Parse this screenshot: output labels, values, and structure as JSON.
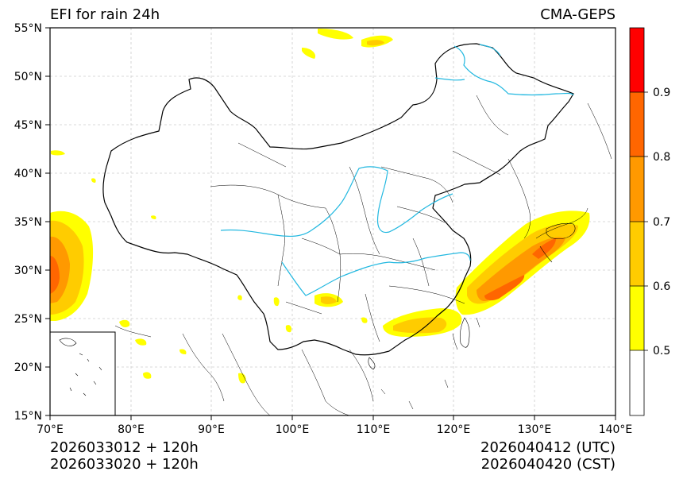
{
  "title_left": "EFI for rain 24h",
  "title_right": "CMA-GEPS",
  "map": {
    "lon_range": [
      70,
      140
    ],
    "lat_range": [
      15,
      55
    ],
    "lon_ticks": [
      "70°E",
      "80°E",
      "90°E",
      "100°E",
      "110°E",
      "120°E",
      "130°E",
      "140°E"
    ],
    "lat_ticks": [
      "15°N",
      "20°N",
      "25°N",
      "30°N",
      "35°N",
      "40°N",
      "45°N",
      "50°N",
      "55°N"
    ]
  },
  "colorbar": {
    "labels": [
      "0.5",
      "0.6",
      "0.7",
      "0.8",
      "0.9"
    ],
    "levels": [
      {
        "from": 0.4,
        "to": 0.5,
        "color": "#ffffff"
      },
      {
        "from": 0.5,
        "to": 0.6,
        "color": "#ffff00"
      },
      {
        "from": 0.6,
        "to": 0.7,
        "color": "#ffcc00"
      },
      {
        "from": 0.7,
        "to": 0.8,
        "color": "#ff9900"
      },
      {
        "from": 0.8,
        "to": 0.9,
        "color": "#ff6600"
      },
      {
        "from": 0.9,
        "to": 1.0,
        "color": "#ff0000"
      }
    ]
  },
  "footer": {
    "init_utc": "2026033012 + 120h",
    "init_cst": "2026033020 + 120h",
    "valid_utc": "2026040412 (UTC)",
    "valid_cst": "2026040420 (CST)"
  },
  "colors": {
    "river": "#22b8e0",
    "grid": "#cccccc",
    "border": "#000000"
  }
}
